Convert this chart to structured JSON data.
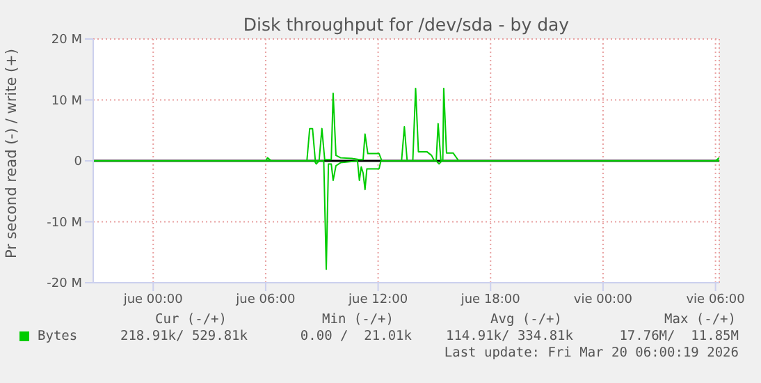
{
  "chart_data": {
    "type": "line",
    "title": "Disk throughput for /dev/sda - by day",
    "ylabel": "Pr second read (-) / write (+)",
    "xlim": [
      "2026-03-18T20:48",
      "2026-03-20T06:12"
    ],
    "xticks": [
      {
        "value": "2026-03-19T00:00",
        "label": "jue 00:00"
      },
      {
        "value": "2026-03-19T06:00",
        "label": "jue 06:00"
      },
      {
        "value": "2026-03-19T12:00",
        "label": "jue 12:00"
      },
      {
        "value": "2026-03-19T18:00",
        "label": "jue 18:00"
      },
      {
        "value": "2026-03-20T00:00",
        "label": "vie 00:00"
      },
      {
        "value": "2026-03-20T06:00",
        "label": "vie 06:00"
      }
    ],
    "ylim": [
      -20000000,
      20000000
    ],
    "yticks": [
      {
        "value": -20000000,
        "label": "-20 M"
      },
      {
        "value": -10000000,
        "label": "-10 M"
      },
      0,
      {
        "value": 10000000,
        "label": "10 M"
      },
      {
        "value": 20000000,
        "label": "20 M"
      }
    ],
    "grid": true,
    "legend": "bottom",
    "series": [
      {
        "name": "Bytes",
        "color": "#00cc00",
        "x": [
          "2026-03-18T20:48",
          "2026-03-19T06:00",
          "2026-03-19T06:06",
          "2026-03-19T06:18",
          "2026-03-19T08:12",
          "2026-03-19T08:21",
          "2026-03-19T08:30",
          "2026-03-19T08:39",
          "2026-03-19T08:51",
          "2026-03-19T09:00",
          "2026-03-19T09:09",
          "2026-03-19T09:30",
          "2026-03-19T09:36",
          "2026-03-19T09:45",
          "2026-03-19T10:00",
          "2026-03-19T10:36",
          "2026-03-19T11:00",
          "2026-03-19T11:12",
          "2026-03-19T11:18",
          "2026-03-19T11:27",
          "2026-03-19T12:03",
          "2026-03-19T12:12",
          "2026-03-19T13:15",
          "2026-03-19T13:24",
          "2026-03-19T13:33",
          "2026-03-19T13:51",
          "2026-03-19T14:00",
          "2026-03-19T14:09",
          "2026-03-19T14:36",
          "2026-03-19T14:51",
          "2026-03-19T15:00",
          "2026-03-19T15:06",
          "2026-03-19T15:12",
          "2026-03-19T15:21",
          "2026-03-19T15:27",
          "2026-03-19T15:30",
          "2026-03-19T15:39",
          "2026-03-19T16:00",
          "2026-03-19T16:18",
          "2026-03-20T06:00",
          "2026-03-20T06:12"
        ],
        "values": [
          0,
          0,
          500000,
          0,
          0,
          5300000,
          5300000,
          0,
          0,
          5300000,
          200000,
          200000,
          11100000,
          900000,
          500000,
          400000,
          200000,
          200000,
          4400000,
          1200000,
          1200000,
          0,
          0,
          5600000,
          0,
          0,
          11900000,
          1500000,
          1500000,
          900000,
          0,
          0,
          6100000,
          0,
          0,
          11900000,
          1300000,
          1300000,
          0,
          0,
          500000
        ]
      },
      {
        "color": "#00cc00",
        "x": [
          "2026-03-18T20:48",
          "2026-03-19T08:36",
          "2026-03-19T08:42",
          "2026-03-19T08:51",
          "2026-03-19T09:06",
          "2026-03-19T09:14",
          "2026-03-19T09:21",
          "2026-03-19T09:30",
          "2026-03-19T09:36",
          "2026-03-19T09:45",
          "2026-03-19T10:00",
          "2026-03-19T10:54",
          "2026-03-19T11:00",
          "2026-03-19T11:06",
          "2026-03-19T11:12",
          "2026-03-19T11:18",
          "2026-03-19T11:24",
          "2026-03-19T12:03",
          "2026-03-19T12:09",
          "2026-03-19T15:06",
          "2026-03-19T15:15",
          "2026-03-19T15:24",
          "2026-03-20T06:12"
        ],
        "values": [
          0,
          0,
          -500000,
          0,
          0,
          -17800000,
          -500000,
          -500000,
          -3200000,
          -800000,
          -300000,
          0,
          -3200000,
          -1000000,
          -2000000,
          -4700000,
          -1300000,
          -1300000,
          0,
          0,
          -500000,
          0,
          0
        ]
      }
    ],
    "ref_lines": [
      {
        "axis": "y",
        "value": 0,
        "color": "#000000"
      }
    ],
    "annotations": [
      "Cur (-/+)",
      "Min (-/+)",
      "Avg (-/+)",
      "Max (-/+)",
      "218.91k/ 529.81k",
      "0.00 /  21.01k",
      "114.91k/ 334.81k",
      "17.76M/  11.85M",
      "Last update: Fri Mar 20 06:00:19 2026"
    ]
  }
}
